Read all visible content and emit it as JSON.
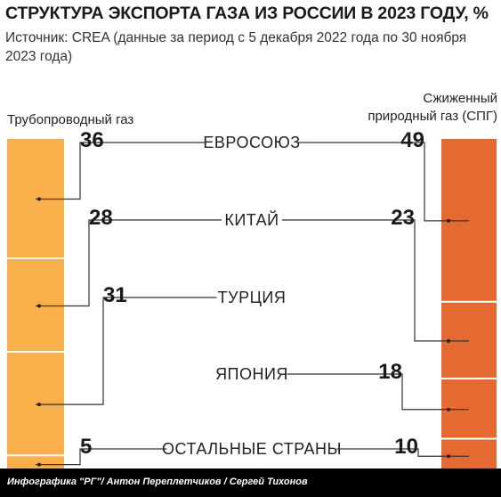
{
  "title": "СТРУКТУРА ЭКСПОРТА ГАЗА ИЗ РОССИИ В 2023 ГОДУ, %",
  "source": "Источник: CREA (данные за период с 5 декабря 2022 года по 30 ноября 2023 года)",
  "credit": "Инфографика \"РГ\"/ Антон Переплетчиков / Сергей Тихонов",
  "colors": {
    "pipeline": "#f9b04b",
    "lng": "#e46a32",
    "line": "#333333",
    "footer": "#000000"
  },
  "chart_data": {
    "type": "stacked-bar-comparison",
    "series": [
      {
        "name": "Трубопроводный газ",
        "values": [
          36,
          28,
          31,
          null,
          5
        ]
      },
      {
        "name": "Сжиженный природный газ (СПГ)",
        "values": [
          49,
          23,
          null,
          18,
          10
        ]
      }
    ],
    "categories": [
      "ЕВРОСОЮЗ",
      "КИТАЙ",
      "ТУРЦИЯ",
      "ЯПОНИЯ",
      "ОСТАЛЬНЫЕ СТРАНЫ"
    ],
    "value_labels": {
      "left": [
        "36",
        "28",
        "31",
        "",
        "5"
      ],
      "right": [
        "49",
        "23",
        "",
        "18",
        "10"
      ]
    }
  }
}
